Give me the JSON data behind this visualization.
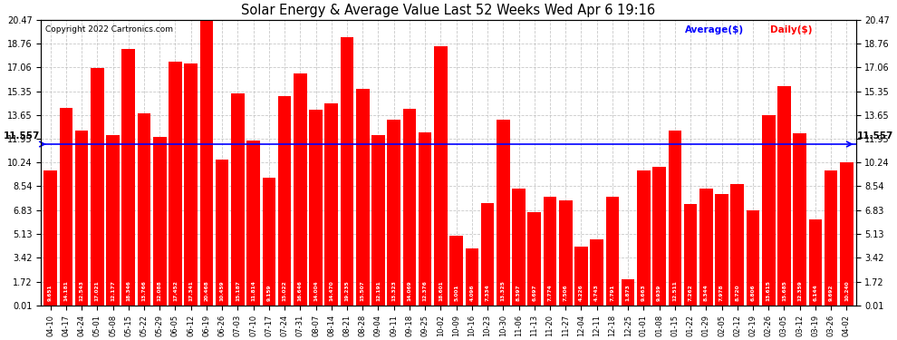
{
  "title": "Solar Energy & Average Value Last 52 Weeks Wed Apr 6 19:16",
  "copyright": "Copyright 2022 Cartronics.com",
  "average_label": "Average($)",
  "daily_label": "Daily($)",
  "average_value": 11.557,
  "average_line_label": "11.557",
  "ylim": [
    0.01,
    20.47
  ],
  "yticks": [
    0.01,
    1.72,
    3.42,
    5.13,
    6.83,
    8.54,
    10.24,
    11.95,
    13.65,
    15.35,
    17.06,
    18.76,
    20.47
  ],
  "bar_color": "#FF0000",
  "average_line_color": "#0000FF",
  "background_color": "#FFFFFF",
  "grid_color": "#BBBBBB",
  "categories": [
    "04-10",
    "04-17",
    "04-24",
    "05-01",
    "05-08",
    "05-15",
    "05-22",
    "05-29",
    "06-05",
    "06-12",
    "06-19",
    "06-26",
    "07-03",
    "07-10",
    "07-17",
    "07-24",
    "07-31",
    "08-07",
    "08-14",
    "08-21",
    "08-28",
    "09-04",
    "09-11",
    "09-18",
    "09-25",
    "10-02",
    "10-09",
    "10-16",
    "10-23",
    "10-30",
    "11-06",
    "11-13",
    "11-20",
    "11-27",
    "12-04",
    "12-11",
    "12-18",
    "12-25",
    "01-01",
    "01-08",
    "01-15",
    "01-22",
    "01-29",
    "02-05",
    "02-12",
    "02-19",
    "02-26",
    "03-05",
    "03-12",
    "03-19",
    "03-26",
    "04-02"
  ],
  "values": [
    9.651,
    14.181,
    12.543,
    17.021,
    12.177,
    18.346,
    13.766,
    12.088,
    17.452,
    17.341,
    20.468,
    10.459,
    15.187,
    11.814,
    9.159,
    15.022,
    16.646,
    14.004,
    14.47,
    19.235,
    15.507,
    12.191,
    13.323,
    14.069,
    12.376,
    18.601,
    5.001,
    4.096,
    7.334,
    13.325,
    8.397,
    6.697,
    7.774,
    7.506,
    4.226,
    4.743,
    7.791,
    1.873,
    9.663,
    9.939,
    12.511,
    7.262,
    8.344,
    7.978,
    8.72,
    6.806,
    13.615,
    15.685,
    12.359,
    6.144,
    9.692,
    10.24
  ]
}
